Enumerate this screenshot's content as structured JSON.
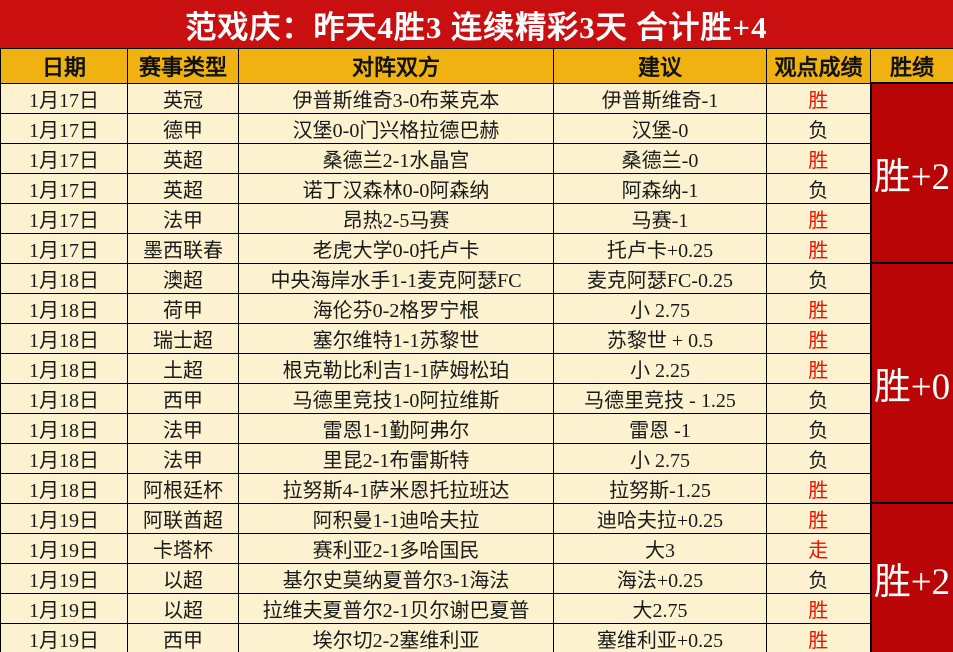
{
  "banner": {
    "title": "范戏庆：昨天4胜3  连续精彩3天  合计胜+4"
  },
  "colors": {
    "banner_bg": "#c90f0f",
    "header_bg": "#efb211",
    "row_bg": "#fcf2cf",
    "group_bg": "#b90505",
    "win_text": "#ee1100",
    "lose_text": "#1a1a1a"
  },
  "table": {
    "headers": [
      "日期",
      "赛事类型",
      "对阵双方",
      "建议",
      "观点成绩",
      "胜绩"
    ],
    "rows": [
      {
        "date": "1月17日",
        "league": "英冠",
        "match": "伊普斯维奇3-0布莱克本",
        "suggestion": "伊普斯维奇-1",
        "result": "胜",
        "result_color": "red"
      },
      {
        "date": "1月17日",
        "league": "德甲",
        "match": "汉堡0-0门兴格拉德巴赫",
        "suggestion": "汉堡-0",
        "result": "负",
        "result_color": "black"
      },
      {
        "date": "1月17日",
        "league": "英超",
        "match": "桑德兰2-1水晶宫",
        "suggestion": "桑德兰-0",
        "result": "胜",
        "result_color": "red"
      },
      {
        "date": "1月17日",
        "league": "英超",
        "match": "诺丁汉森林0-0阿森纳",
        "suggestion": "阿森纳-1",
        "result": "负",
        "result_color": "black"
      },
      {
        "date": "1月17日",
        "league": "法甲",
        "match": "昂热2-5马赛",
        "suggestion": "马赛-1",
        "result": "胜",
        "result_color": "red"
      },
      {
        "date": "1月17日",
        "league": "墨西联春",
        "match": "老虎大学0-0托卢卡",
        "suggestion": "托卢卡+0.25",
        "result": "胜",
        "result_color": "red"
      },
      {
        "date": "1月18日",
        "league": "澳超",
        "match": "中央海岸水手1-1麦克阿瑟FC",
        "suggestion": "麦克阿瑟FC-0.25",
        "result": "负",
        "result_color": "black"
      },
      {
        "date": "1月18日",
        "league": "荷甲",
        "match": "海伦芬0-2格罗宁根",
        "suggestion": "小 2.75",
        "result": "胜",
        "result_color": "red"
      },
      {
        "date": "1月18日",
        "league": "瑞士超",
        "match": "塞尔维特1-1苏黎世",
        "suggestion": "苏黎世 + 0.5",
        "result": "胜",
        "result_color": "red"
      },
      {
        "date": "1月18日",
        "league": "土超",
        "match": "根克勒比利吉1-1萨姆松珀",
        "suggestion": "小 2.25",
        "result": "胜",
        "result_color": "red"
      },
      {
        "date": "1月18日",
        "league": "西甲",
        "match": "马德里竞技1-0阿拉维斯",
        "suggestion": "马德里竞技 - 1.25",
        "result": "负",
        "result_color": "black"
      },
      {
        "date": "1月18日",
        "league": "法甲",
        "match": "雷恩1-1勤阿弗尔",
        "suggestion": "雷恩 -1",
        "result": "负",
        "result_color": "black"
      },
      {
        "date": "1月18日",
        "league": "法甲",
        "match": "里昆2-1布雷斯特",
        "suggestion": "小 2.75",
        "result": "负",
        "result_color": "black"
      },
      {
        "date": "1月18日",
        "league": "阿根廷杯",
        "match": "拉努斯4-1萨米恩托拉班达",
        "suggestion": "拉努斯-1.25",
        "result": "胜",
        "result_color": "red"
      },
      {
        "date": "1月19日",
        "league": "阿联酋超",
        "match": "阿积曼1-1迪哈夫拉",
        "suggestion": "迪哈夫拉+0.25",
        "result": "胜",
        "result_color": "red"
      },
      {
        "date": "1月19日",
        "league": "卡塔杯",
        "match": "赛利亚2-1多哈国民",
        "suggestion": "大3",
        "result": "走",
        "result_color": "red"
      },
      {
        "date": "1月19日",
        "league": "以超",
        "match": "基尔史莫纳夏普尔3-1海法",
        "suggestion": "海法+0.25",
        "result": "负",
        "result_color": "black"
      },
      {
        "date": "1月19日",
        "league": "以超",
        "match": "拉维夫夏普尔2-1贝尔谢巴夏普",
        "suggestion": "大2.75",
        "result": "胜",
        "result_color": "red"
      },
      {
        "date": "1月19日",
        "league": "西甲",
        "match": "埃尔切2-2塞维利亚",
        "suggestion": "塞维利亚+0.25",
        "result": "胜",
        "result_color": "red"
      }
    ],
    "groups": [
      {
        "label": "胜+2",
        "rows": 6
      },
      {
        "label": "胜+0",
        "rows": 8
      },
      {
        "label": "胜+2",
        "rows": 5
      }
    ]
  }
}
